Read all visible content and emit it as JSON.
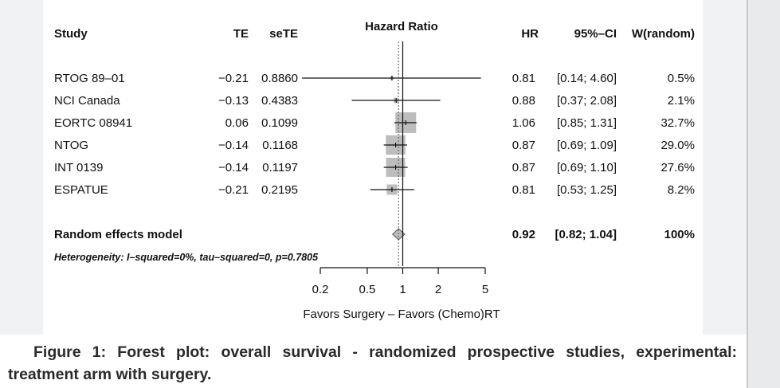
{
  "chart_data": {
    "type": "forest",
    "header": {
      "study": "Study",
      "te": "TE",
      "sete": "seTE",
      "plot": "Hazard Ratio",
      "hr": "HR",
      "ci": "95%–CI",
      "weight": "W(random)"
    },
    "studies": [
      {
        "name": "RTOG 89–01",
        "te": "−0.21",
        "sete": "0.8860",
        "hr": 0.81,
        "lo": 0.14,
        "hi": 4.6,
        "hr_text": "0.81",
        "ci_text": "[0.14; 4.60]",
        "weight_text": "0.5%",
        "weight": 0.5
      },
      {
        "name": "NCI Canada",
        "te": "−0.13",
        "sete": "0.4383",
        "hr": 0.88,
        "lo": 0.37,
        "hi": 2.08,
        "hr_text": "0.88",
        "ci_text": "[0.37; 2.08]",
        "weight_text": "2.1%",
        "weight": 2.1
      },
      {
        "name": "EORTC 08941",
        "te": "0.06",
        "sete": "0.1099",
        "hr": 1.06,
        "lo": 0.85,
        "hi": 1.31,
        "hr_text": "1.06",
        "ci_text": "[0.85; 1.31]",
        "weight_text": "32.7%",
        "weight": 32.7
      },
      {
        "name": "NTOG",
        "te": "−0.14",
        "sete": "0.1168",
        "hr": 0.87,
        "lo": 0.69,
        "hi": 1.09,
        "hr_text": "0.87",
        "ci_text": "[0.69; 1.09]",
        "weight_text": "29.0%",
        "weight": 29.0
      },
      {
        "name": "INT 0139",
        "te": "−0.14",
        "sete": "0.1197",
        "hr": 0.87,
        "lo": 0.69,
        "hi": 1.1,
        "hr_text": "0.87",
        "ci_text": "[0.69; 1.10]",
        "weight_text": "27.6%",
        "weight": 27.6
      },
      {
        "name": "ESPATUE",
        "te": "−0.21",
        "sete": "0.2195",
        "hr": 0.81,
        "lo": 0.53,
        "hi": 1.25,
        "hr_text": "0.81",
        "ci_text": "[0.53; 1.25]",
        "weight_text": "8.2%",
        "weight": 8.2
      }
    ],
    "pooled": {
      "name": "Random effects model",
      "hr": 0.92,
      "lo": 0.82,
      "hi": 1.04,
      "hr_text": "0.92",
      "ci_text": "[0.82; 1.04]",
      "weight_text": "100%"
    },
    "heterogeneity": "Heterogeneity: I–squared=0%, tau–squared=0, p=0.7805",
    "x_scale": "log",
    "x_ticks": [
      0.2,
      0.5,
      1,
      2,
      5
    ],
    "x_tick_labels": [
      "0.2",
      "0.5",
      "1",
      "2",
      "5"
    ],
    "xlim": [
      0.2,
      5
    ],
    "reference_line": 1,
    "xlabel": "Favors Surgery – Favors (Chemo)RT",
    "colors": {
      "square": "#bdbdbd",
      "diamond": "#bdbdbd",
      "line": "#111111"
    }
  },
  "caption": {
    "line1": "Figure 1: Forest plot: overall survival - randomized prospective studies,",
    "line2": "experimental: treatment arm with surgery."
  }
}
